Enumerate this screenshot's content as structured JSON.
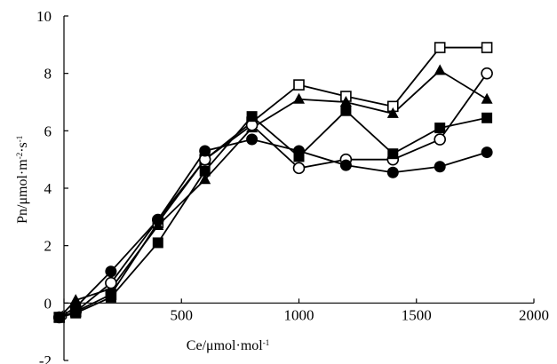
{
  "chart_data": {
    "type": "line",
    "xlabel": {
      "parts": [
        {
          "text": "Ce/μmol·mol"
        },
        {
          "text": "-1",
          "sup": true
        }
      ]
    },
    "ylabel": {
      "parts": [
        {
          "text": "Pn/μmol·m"
        },
        {
          "text": "-2",
          "sup": true
        },
        {
          "text": "·s"
        },
        {
          "text": "-1",
          "sup": true
        }
      ]
    },
    "xlim": [
      0,
      2000
    ],
    "ylim": [
      -2,
      10
    ],
    "xticks": [
      0,
      500,
      1000,
      1500,
      2000
    ],
    "yticks": [
      -2,
      0,
      2,
      4,
      6,
      8,
      10
    ],
    "xtick_labels": [
      "0",
      "500",
      "1000",
      "1500",
      "2000"
    ],
    "ytick_labels": [
      "-2",
      "0",
      "2",
      "4",
      "6",
      "8",
      "10"
    ],
    "grid": false,
    "legend": "none",
    "series": [
      {
        "marker": "open-square",
        "x": [
          -20,
          50,
          200,
          400,
          600,
          800,
          1000,
          1200,
          1400,
          1600,
          1800
        ],
        "y": [
          -0.5,
          -0.3,
          0.3,
          2.8,
          5.0,
          6.3,
          7.6,
          7.2,
          6.85,
          8.9,
          8.9
        ]
      },
      {
        "marker": "filled-triangle",
        "x": [
          -20,
          50,
          200,
          400,
          600,
          800,
          1000,
          1200,
          1400,
          1600,
          1800
        ],
        "y": [
          -0.5,
          0.1,
          0.5,
          2.7,
          4.3,
          6.1,
          7.1,
          7.0,
          6.6,
          8.1,
          7.1
        ]
      },
      {
        "marker": "open-circle",
        "x": [
          -20,
          50,
          200,
          400,
          600,
          800,
          1000,
          1200,
          1400,
          1600,
          1800
        ],
        "y": [
          -0.5,
          -0.3,
          0.7,
          2.9,
          5.0,
          6.2,
          4.7,
          5.0,
          5.0,
          5.7,
          8.0
        ]
      },
      {
        "marker": "filled-square",
        "x": [
          -20,
          50,
          200,
          400,
          600,
          800,
          1000,
          1200,
          1400,
          1600,
          1800
        ],
        "y": [
          -0.5,
          -0.35,
          0.2,
          2.1,
          4.6,
          6.5,
          5.1,
          6.7,
          5.2,
          6.1,
          6.45
        ]
      },
      {
        "marker": "filled-circle",
        "x": [
          -20,
          50,
          200,
          400,
          600,
          800,
          1000,
          1200,
          1400,
          1600,
          1800
        ],
        "y": [
          -0.5,
          -0.15,
          1.1,
          2.9,
          5.3,
          5.7,
          5.3,
          4.8,
          4.55,
          4.75,
          5.25
        ]
      }
    ]
  }
}
